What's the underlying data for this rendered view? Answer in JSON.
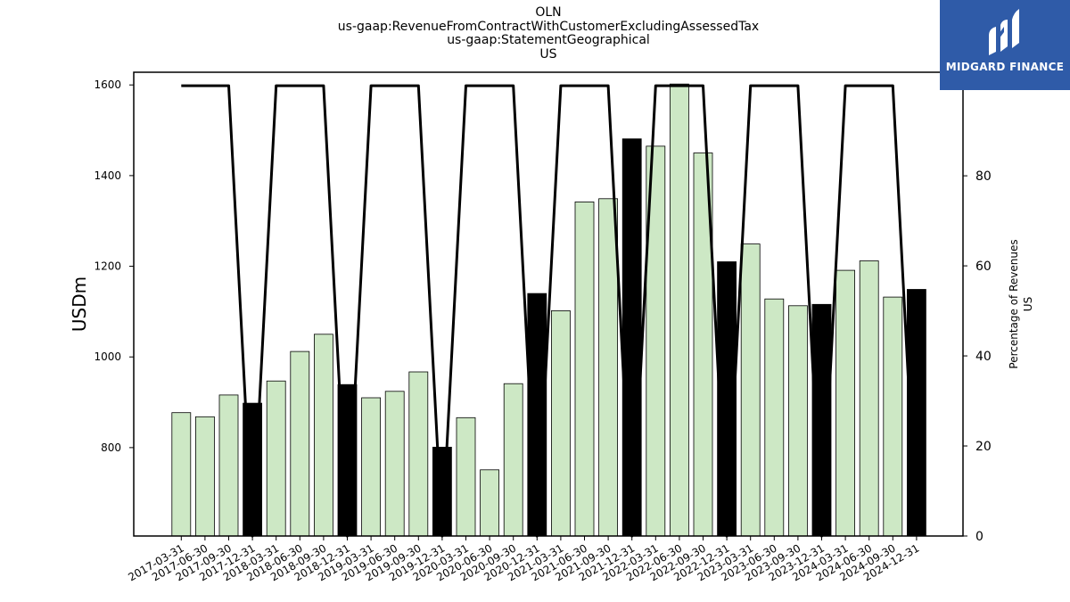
{
  "header": {
    "line1": "OLN",
    "line2": "us-gaap:RevenueFromContractWithCustomerExcludingAssessedTax",
    "line3": "us-gaap:StatementGeographical",
    "line4": "US"
  },
  "logo": {
    "text": "MIDGARD FINANCE",
    "color": "#2f5ba8"
  },
  "chart_data": {
    "type": "bar",
    "categories": [
      "2017-03-31",
      "2017-06-30",
      "2017-09-30",
      "2017-12-31",
      "2018-03-31",
      "2018-06-30",
      "2018-09-30",
      "2018-12-31",
      "2019-03-31",
      "2019-06-30",
      "2019-09-30",
      "2019-12-31",
      "2020-03-31",
      "2020-06-30",
      "2020-09-30",
      "2020-12-31",
      "2021-03-31",
      "2021-06-30",
      "2021-09-30",
      "2021-12-31",
      "2022-03-31",
      "2022-06-30",
      "2022-09-30",
      "2022-12-31",
      "2023-03-31",
      "2023-06-30",
      "2023-09-30",
      "2023-12-31",
      "2024-03-31",
      "2024-06-30",
      "2024-09-30",
      "2024-12-31"
    ],
    "series": [
      {
        "type": "bar",
        "axis": "left",
        "values": [
          877,
          868,
          916,
          898,
          947,
          1012,
          1050,
          939,
          910,
          924,
          967,
          801,
          866,
          751,
          941,
          1140,
          1102,
          1342,
          1349,
          1481,
          1465,
          1602,
          1450,
          1210,
          1249,
          1128,
          1113,
          1116,
          1191,
          1212,
          1132,
          1149
        ]
      },
      {
        "type": "line",
        "axis": "right",
        "values": [
          100,
          100,
          100,
          0,
          100,
          100,
          100,
          0,
          100,
          100,
          100,
          0,
          100,
          100,
          100,
          0,
          100,
          100,
          100,
          0,
          100,
          100,
          100,
          0,
          100,
          100,
          100,
          0,
          100,
          100,
          100,
          0
        ]
      }
    ],
    "highlight_every": 4,
    "ylabel": "USDm",
    "y2label_line1": "Percentage of Revenues",
    "y2label_line2": "US",
    "ylim": [
      605,
      1628
    ],
    "y2lim": [
      0,
      103
    ],
    "yticks": [
      800,
      1000,
      1200,
      1400,
      1600
    ],
    "y2ticks": [
      0,
      20,
      40,
      60,
      80,
      100
    ],
    "colors": {
      "bar": "#cde8c5",
      "bar_highlight": "#000000",
      "line": "#000000"
    },
    "grid": false
  }
}
